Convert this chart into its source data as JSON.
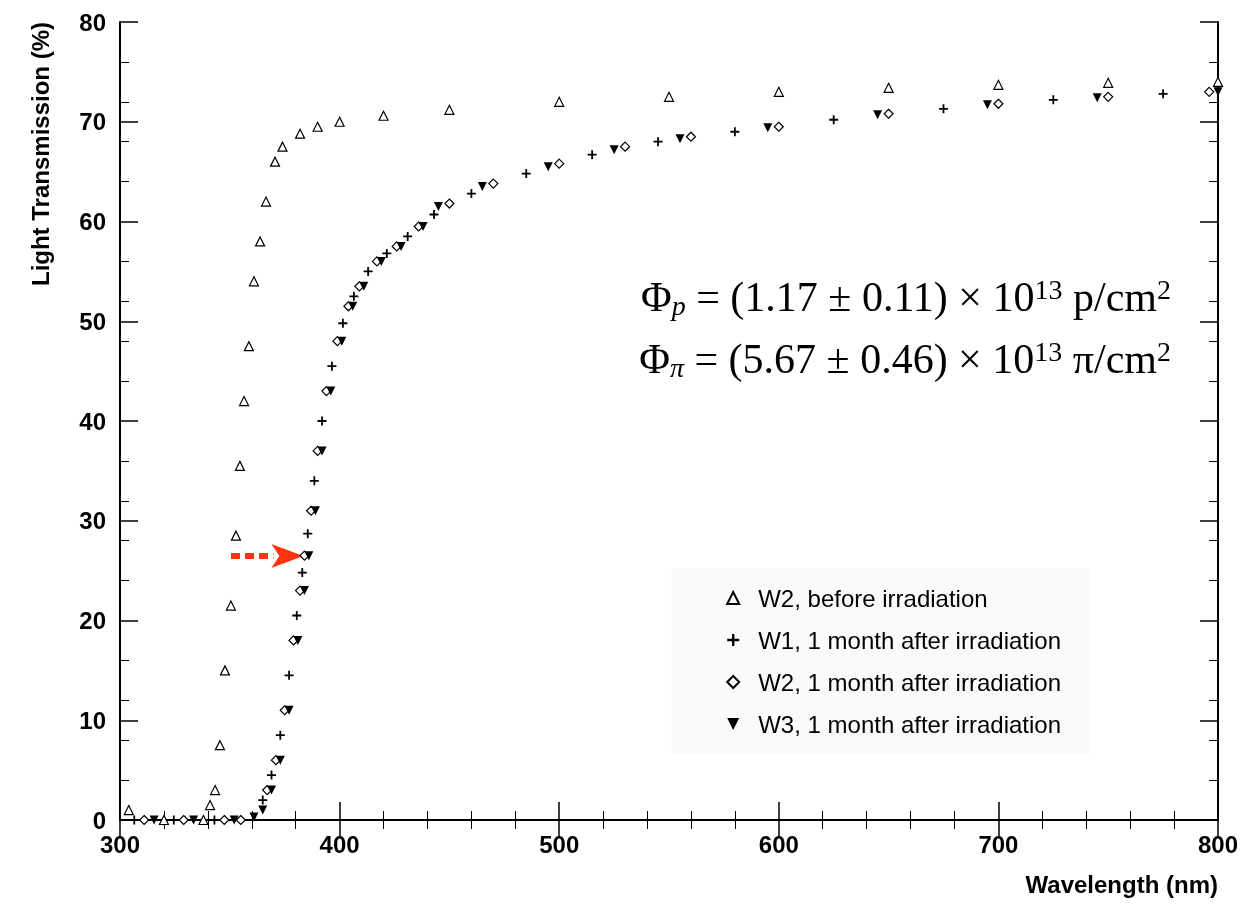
{
  "chart_data": {
    "type": "scatter",
    "xlabel": "Wavelength (nm)",
    "ylabel": "Light Transmission (%)",
    "xlim": [
      300,
      800
    ],
    "xticks": [
      300,
      400,
      500,
      600,
      700,
      800
    ],
    "ylim": [
      0,
      80
    ],
    "yticks": [
      0,
      10,
      20,
      30,
      40,
      50,
      60,
      70,
      80
    ],
    "grid": false,
    "legend": "bottom right",
    "annotations": [
      "Φ$_{p}$ = (1.17 ± 0.11) × 10$^{13}$ p/cm$^{2}$",
      "Φ$_{π}$ = (5.67 ± 0.46) × 10$^{13}$ π/cm$^{2}$"
    ],
    "series": [
      {
        "name": "W2, before irradiation",
        "color": "#000000",
        "marker": "triangle",
        "x": [
          304,
          320,
          338,
          341,
          343.3,
          345.5,
          347.8,
          350.5,
          352.8,
          354.6,
          356.5,
          358.7,
          361,
          363.8,
          366.5,
          370.6,
          374,
          382,
          390,
          400,
          420,
          450,
          500,
          550,
          600,
          650,
          700,
          750,
          800
        ],
        "values": [
          1,
          0,
          0,
          1.5,
          3,
          7.5,
          15,
          21.5,
          28.5,
          35.5,
          42,
          47.5,
          54,
          58,
          62,
          66,
          67.5,
          68.8,
          69.5,
          70,
          70.6,
          71.2,
          72,
          72.5,
          73,
          73.4,
          73.7,
          73.9,
          74
        ]
      },
      {
        "name": "W1, 1 month after irradiation",
        "color": "#000000",
        "marker": "cross",
        "x": [
          306.5,
          324.5,
          343,
          365,
          369,
          373,
          377,
          380.5,
          383,
          385.5,
          388.5,
          392,
          396.5,
          401.5,
          406.5,
          413,
          421.5,
          431,
          443,
          460,
          485,
          515,
          545,
          580,
          625,
          675,
          725,
          775
        ],
        "values": [
          0,
          0,
          0,
          2,
          4.5,
          8.5,
          14.5,
          20.5,
          24.8,
          28.7,
          34,
          40,
          45.5,
          49.8,
          52.5,
          55,
          56.8,
          58.5,
          60.7,
          62.8,
          64.8,
          66.7,
          68,
          69,
          70.2,
          71.3,
          72.2,
          72.8
        ]
      },
      {
        "name": "W2, 1 month after irradiation",
        "color": "#000000",
        "marker": "diamond",
        "x": [
          311,
          329,
          347.5,
          355,
          367,
          371,
          375,
          379,
          382,
          384,
          387,
          390,
          394,
          399,
          404,
          409,
          417,
          426,
          436,
          450,
          470,
          500,
          530,
          560,
          600,
          650,
          700,
          750,
          796
        ],
        "values": [
          0,
          0,
          0,
          0,
          3,
          6,
          11,
          18,
          23,
          26.5,
          31,
          37,
          43,
          48,
          51.5,
          53.5,
          56,
          57.5,
          59.5,
          61.8,
          63.8,
          65.8,
          67.5,
          68.5,
          69.5,
          70.8,
          71.8,
          72.5,
          73
        ]
      },
      {
        "name": "W3, 1 month after irradiation",
        "color": "#000000",
        "marker": "triangle-down",
        "x": [
          315.5,
          333.5,
          352,
          361,
          365,
          369,
          373,
          377,
          381,
          384,
          386,
          389,
          392,
          396,
          401,
          406,
          411,
          419,
          428,
          438,
          445,
          465,
          495,
          525,
          555,
          595,
          645,
          695,
          745,
          800
        ],
        "values": [
          0,
          0,
          0,
          0.3,
          1,
          3,
          6,
          11,
          18,
          23,
          26.5,
          31,
          37,
          43,
          48,
          51.5,
          53.5,
          56,
          57.5,
          59.5,
          61.5,
          63.5,
          65.5,
          67.2,
          68.3,
          69.4,
          70.7,
          71.7,
          72.4,
          73
        ]
      }
    ]
  }
}
